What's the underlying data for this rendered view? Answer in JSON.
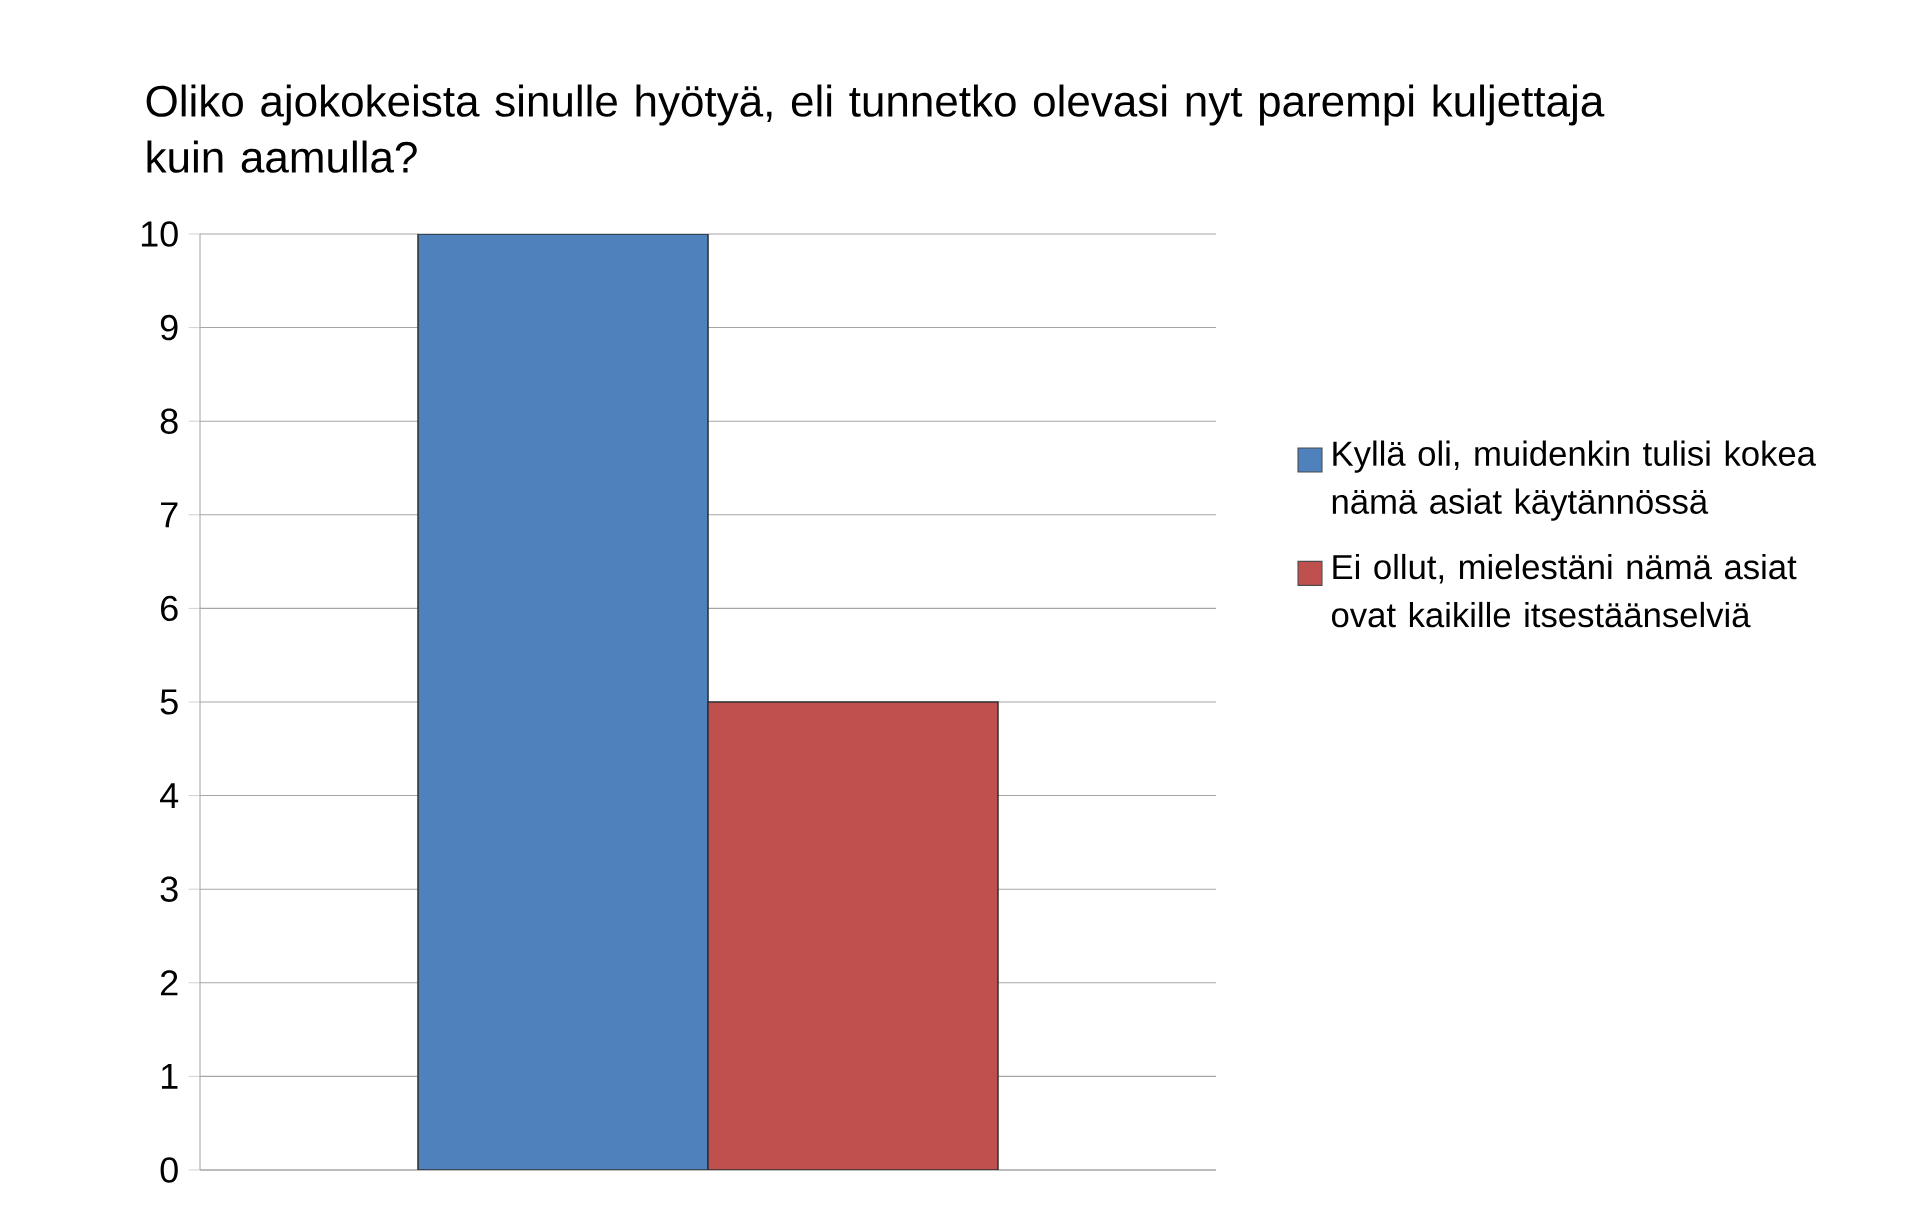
{
  "chart_data": {
    "type": "bar",
    "title": "Oliko ajokokeista sinulle hyötyä, eli tunnetko olevasi nyt parempi kuljettaja kuin aamulla?",
    "categories": [
      null
    ],
    "series": [
      {
        "name": "Kyllä oli, muidenkin tulisi kokea nämä asiat käytännössä",
        "color": "#4f81bd",
        "values": [
          10
        ]
      },
      {
        "name": "Ei ollut, mielestäni nämä asiat ovat kaikille itsestäänselviä",
        "color": "#c0504d",
        "values": [
          5
        ]
      }
    ],
    "ylim": [
      0,
      10
    ],
    "yticks": [
      0,
      1,
      2,
      3,
      4,
      5,
      6,
      7,
      8,
      9,
      10
    ],
    "grid": "y",
    "legend": "right",
    "tick_labels": "y"
  }
}
